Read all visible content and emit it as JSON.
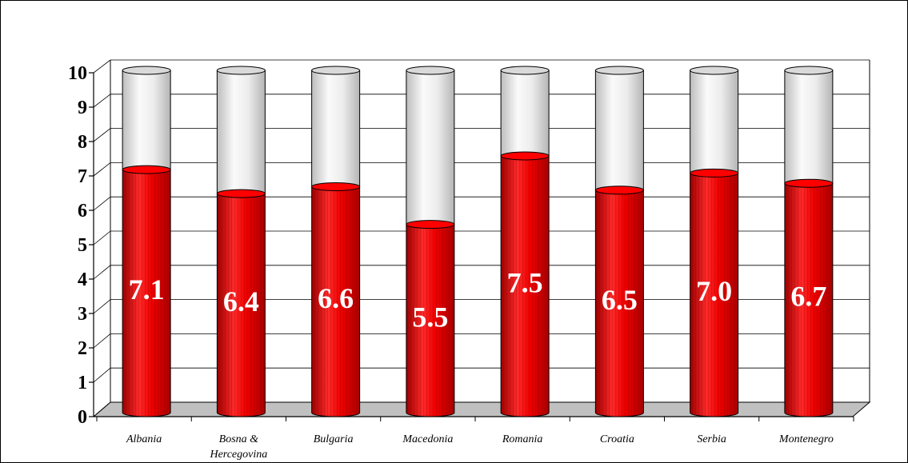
{
  "chart_data": {
    "type": "bar",
    "categories": [
      "Albania",
      "Bosna & Hercegovina",
      "Bulgaria",
      "Macedonia",
      "Romania",
      "Croatia",
      "Serbia",
      "Montenegro"
    ],
    "category_lines": [
      [
        "Albania"
      ],
      [
        "Bosna &",
        "Hercegovina"
      ],
      [
        "Bulgaria"
      ],
      [
        "Macedonia"
      ],
      [
        "Romania"
      ],
      [
        "Croatia"
      ],
      [
        "Serbia"
      ],
      [
        "Montenegro"
      ]
    ],
    "values": [
      7.1,
      6.4,
      6.6,
      5.5,
      7.5,
      6.5,
      7.0,
      6.7
    ],
    "value_labels": [
      "7.1",
      "6.4",
      "6.6",
      "5.5",
      "7.5",
      "6.5",
      "7.0",
      "6.7"
    ],
    "ylim": [
      0,
      10
    ],
    "yticks": [
      "0",
      "1",
      "2",
      "3",
      "4",
      "5",
      "6",
      "7",
      "8",
      "9",
      "10"
    ],
    "grid": true,
    "legend": "none",
    "colors": {
      "bar_fill": "#ff0000",
      "bar_remainder": "#ededed",
      "floor": "#c0c0c0",
      "value_label": "#ffffff"
    }
  }
}
